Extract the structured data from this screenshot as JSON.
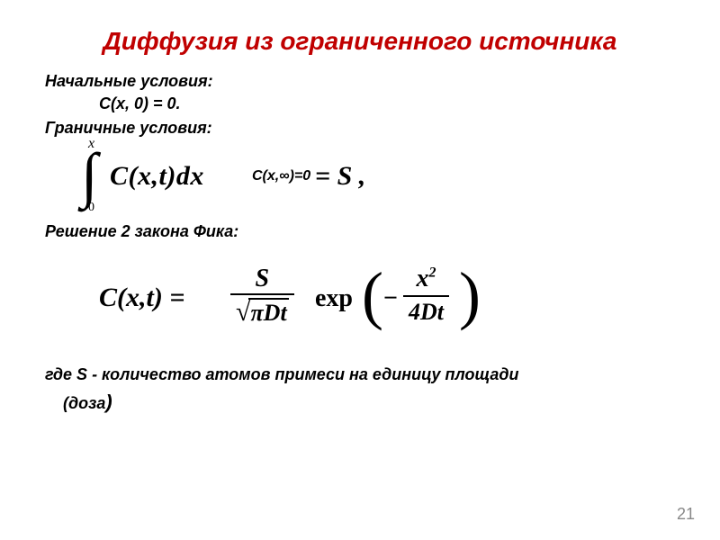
{
  "title": "Диффузия из ограниченного источника",
  "initial_label": "Начальные условия:",
  "initial_eq": "C(x, 0) = 0.",
  "boundary_label": "Граничные условия:",
  "eq1": {
    "upper": "x",
    "lower": "0",
    "integrand": "C(x,t)dx",
    "overlay": "C(x,∞)=0",
    "result": "= S ,"
  },
  "solution_label": "Решение 2 закона Фика:",
  "eq2": {
    "lhs": "C(x,t) =",
    "frac1_num": "S",
    "frac1_den_pi": "π",
    "frac1_den_rest": "Dt",
    "exp": "exp",
    "minus": "−",
    "frac2_num_base": "x",
    "frac2_num_sup": "2",
    "frac2_den": "4Dt"
  },
  "footer_line1": "где  S - количество атомов примеси на единицу площади",
  "footer_line2": "(доза",
  "footer_paren": ")",
  "pagenum": "21",
  "colors": {
    "title": "#c00000",
    "text": "#000000",
    "bg": "#ffffff",
    "pagenum": "#888888"
  }
}
